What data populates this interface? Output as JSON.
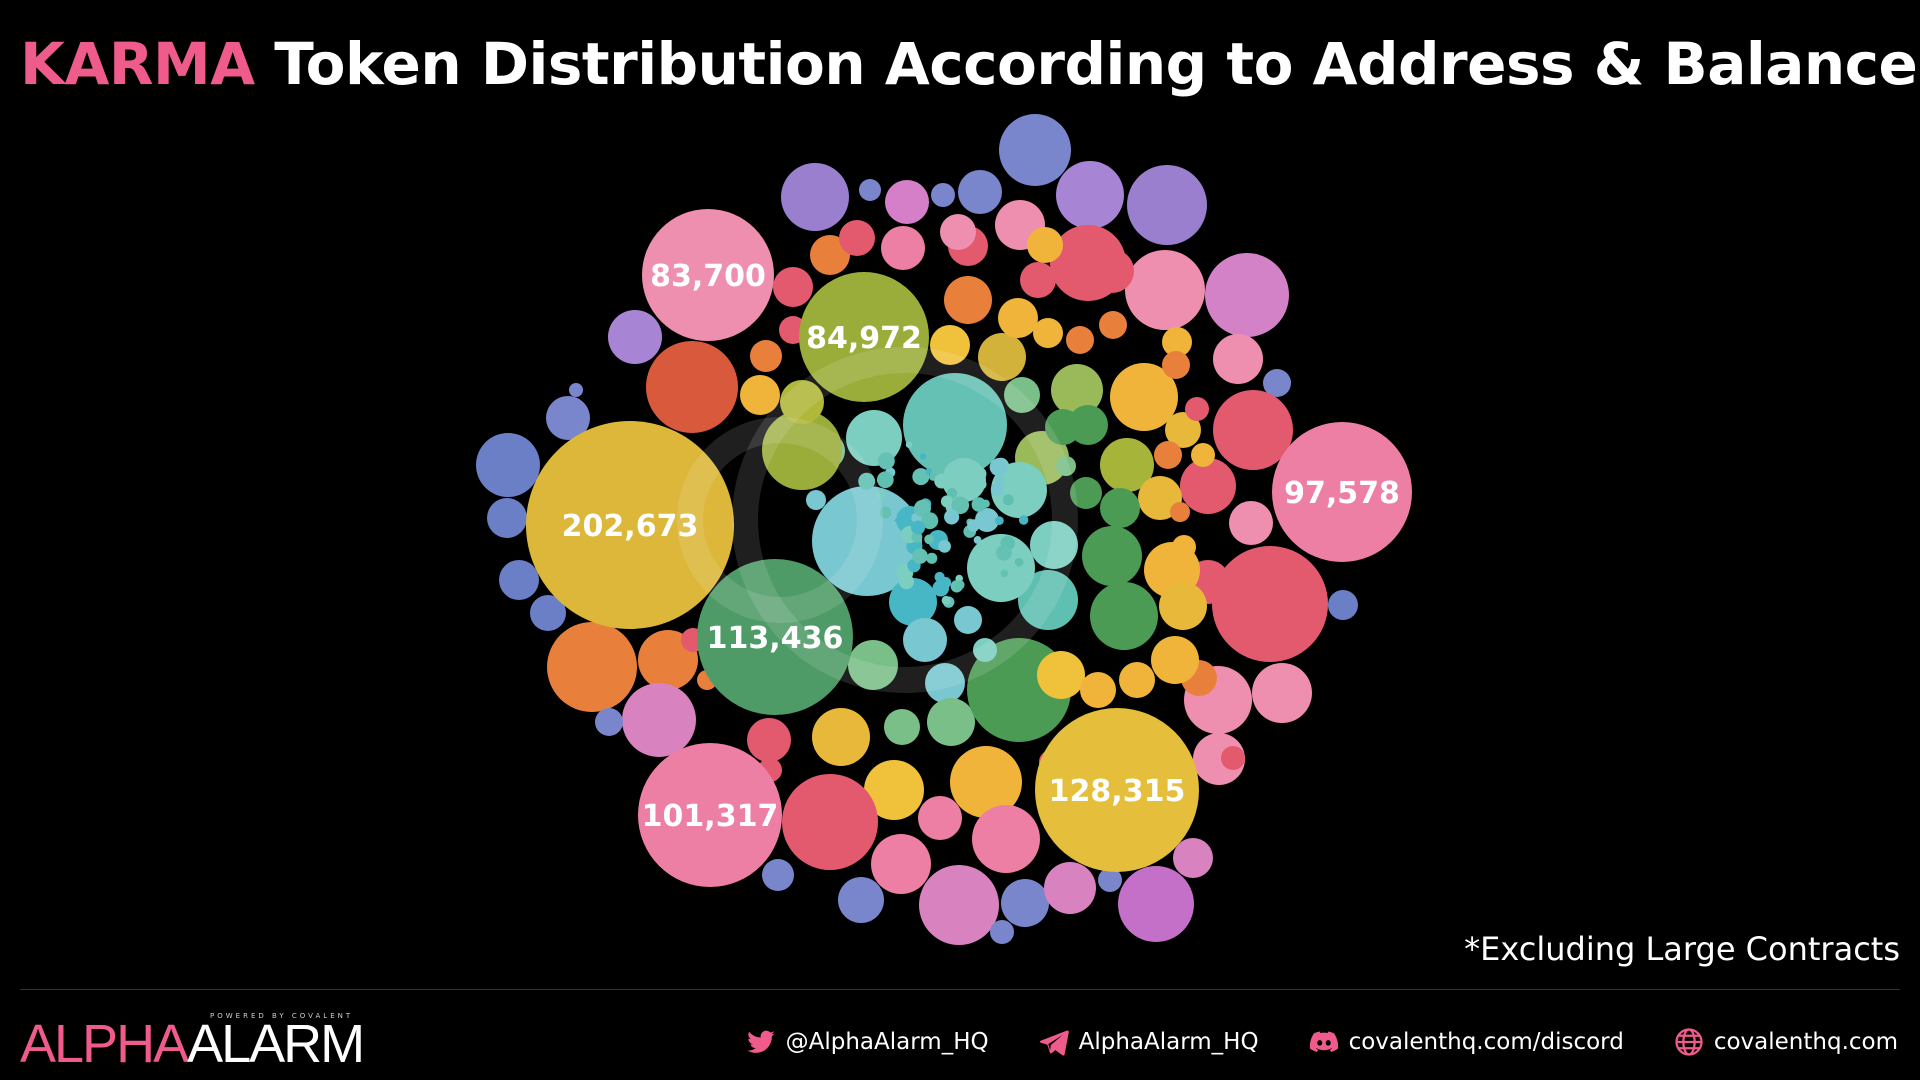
{
  "header": {
    "title_accent": "KARMA",
    "title_rest": " Token Distribution According to Address & Balance"
  },
  "chart_data": {
    "type": "bubble",
    "title": "KARMA Token Distribution According to Address & Balance",
    "labeled_bubbles": [
      {
        "value": 202673,
        "label": "202,673",
        "color": "#dcb73a"
      },
      {
        "value": 128315,
        "label": "128,315",
        "color": "#e5bf3b"
      },
      {
        "value": 113436,
        "label": "113,436",
        "color": "#4e9b67"
      },
      {
        "value": 101317,
        "label": "101,317",
        "color": "#ee7fa4"
      },
      {
        "value": 97578,
        "label": "97,578",
        "color": "#ee7fa4"
      },
      {
        "value": 84972,
        "label": "84,972",
        "color": "#9aad3a"
      },
      {
        "value": 83700,
        "label": "83,700",
        "color": "#ee8fb0"
      }
    ],
    "note": "*Excluding Large Contracts"
  },
  "colors": {
    "accent": "#ef5b8a",
    "background": "#000000",
    "text": "#ffffff"
  },
  "footer": {
    "logo_alpha": "ALPHA",
    "logo_alarm": "ALARM",
    "logo_powered": "POWERED BY COVALENT",
    "links": [
      {
        "icon": "twitter-icon",
        "text": "@AlphaAlarm_HQ"
      },
      {
        "icon": "telegram-icon",
        "text": "AlphaAlarm_HQ"
      },
      {
        "icon": "discord-icon",
        "text": "covalenthq.com/discord"
      },
      {
        "icon": "globe-icon",
        "text": "covalenthq.com"
      }
    ]
  }
}
